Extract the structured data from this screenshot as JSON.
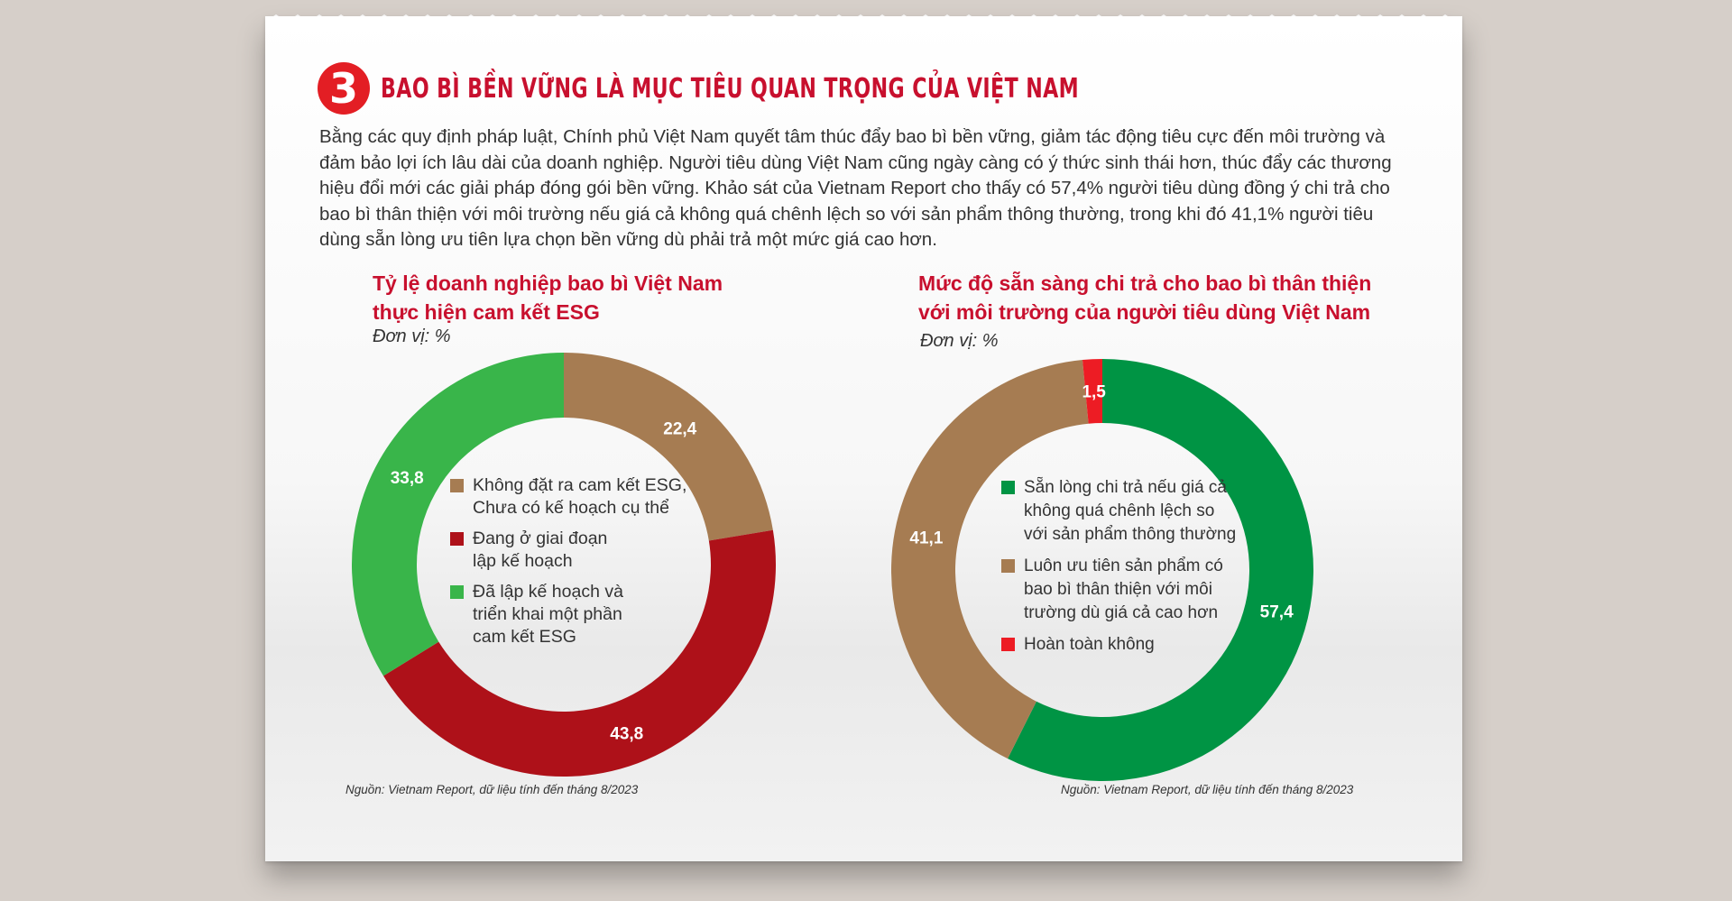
{
  "page": {
    "section_number": "3",
    "title": "BAO BÌ BỀN VỮNG LÀ MỤC TIÊU QUAN TRỌNG CỦA VIỆT NAM",
    "intro": "Bằng các quy định pháp luật, Chính phủ Việt Nam quyết tâm thúc đẩy bao bì bền vững, giảm tác động tiêu cực đến môi trường và đảm bảo lợi ích lâu dài của doanh nghiệp. Người tiêu dùng Việt Nam cũng ngày càng có ý thức sinh thái hơn, thúc đẩy các thương hiệu đổi mới các giải pháp đóng gói bền vững. Khảo sát của Vietnam Report cho thấy có 57,4% người tiêu dùng đồng ý chi trả cho bao bì thân thiện với môi trường nếu giá cả không quá chênh lệch so với sản phẩm thông thường, trong khi đó 41,1% người tiêu dùng sẵn lòng ưu tiên lựa chọn bền vững dù phải trả một mức giá cao hơn."
  },
  "chart_data": [
    {
      "type": "pie",
      "title_line1": "Tỷ lệ doanh nghiệp bao bì Việt Nam",
      "title_line2": "thực hiện cam kết ESG",
      "unit": "Đơn vị: %",
      "source": "Nguồn: Vietnam Report, dữ liệu tính đến tháng 8/2023",
      "slices": [
        {
          "label_line1": "Không đặt ra cam kết ESG,",
          "label_line2": "Chưa có kế hoạch cụ thể",
          "value": 22.4,
          "value_label": "22,4",
          "color": "#a67c52"
        },
        {
          "label_line1": "Đang ở giai đoạn",
          "label_line2": "lập kế hoạch",
          "value": 43.8,
          "value_label": "43,8",
          "color": "#ae1119"
        },
        {
          "label_line1": "Đã lập kế hoạch và",
          "label_line2": "triển khai một phần",
          "label_line3": "cam kết ESG",
          "value": 33.8,
          "value_label": "33,8",
          "color": "#39b54a"
        }
      ]
    },
    {
      "type": "pie",
      "title_line1": "Mức độ sẵn sàng chi trả cho bao bì thân thiện",
      "title_line2": "với môi trường của người tiêu dùng Việt Nam",
      "unit": "Đơn vị: %",
      "source": "Nguồn: Vietnam Report, dữ liệu tính đến tháng 8/2023",
      "slices": [
        {
          "label_line1": "Sẵn lòng chi trả nếu giá cả",
          "label_line2": "không quá chênh lệch so",
          "label_line3": "với sản phẩm thông thường",
          "value": 57.4,
          "value_label": "57,4",
          "color": "#009444"
        },
        {
          "label_line1": "Luôn ưu tiên sản phẩm có",
          "label_line2": "bao bì thân thiện với môi",
          "label_line3": "trường dù giá cả cao hơn",
          "value": 41.1,
          "value_label": "41,1",
          "color": "#a67c52"
        },
        {
          "label_line1": "Hoàn toàn không",
          "value": 1.5,
          "value_label": "1,5",
          "color": "#ed1c24"
        }
      ]
    }
  ]
}
